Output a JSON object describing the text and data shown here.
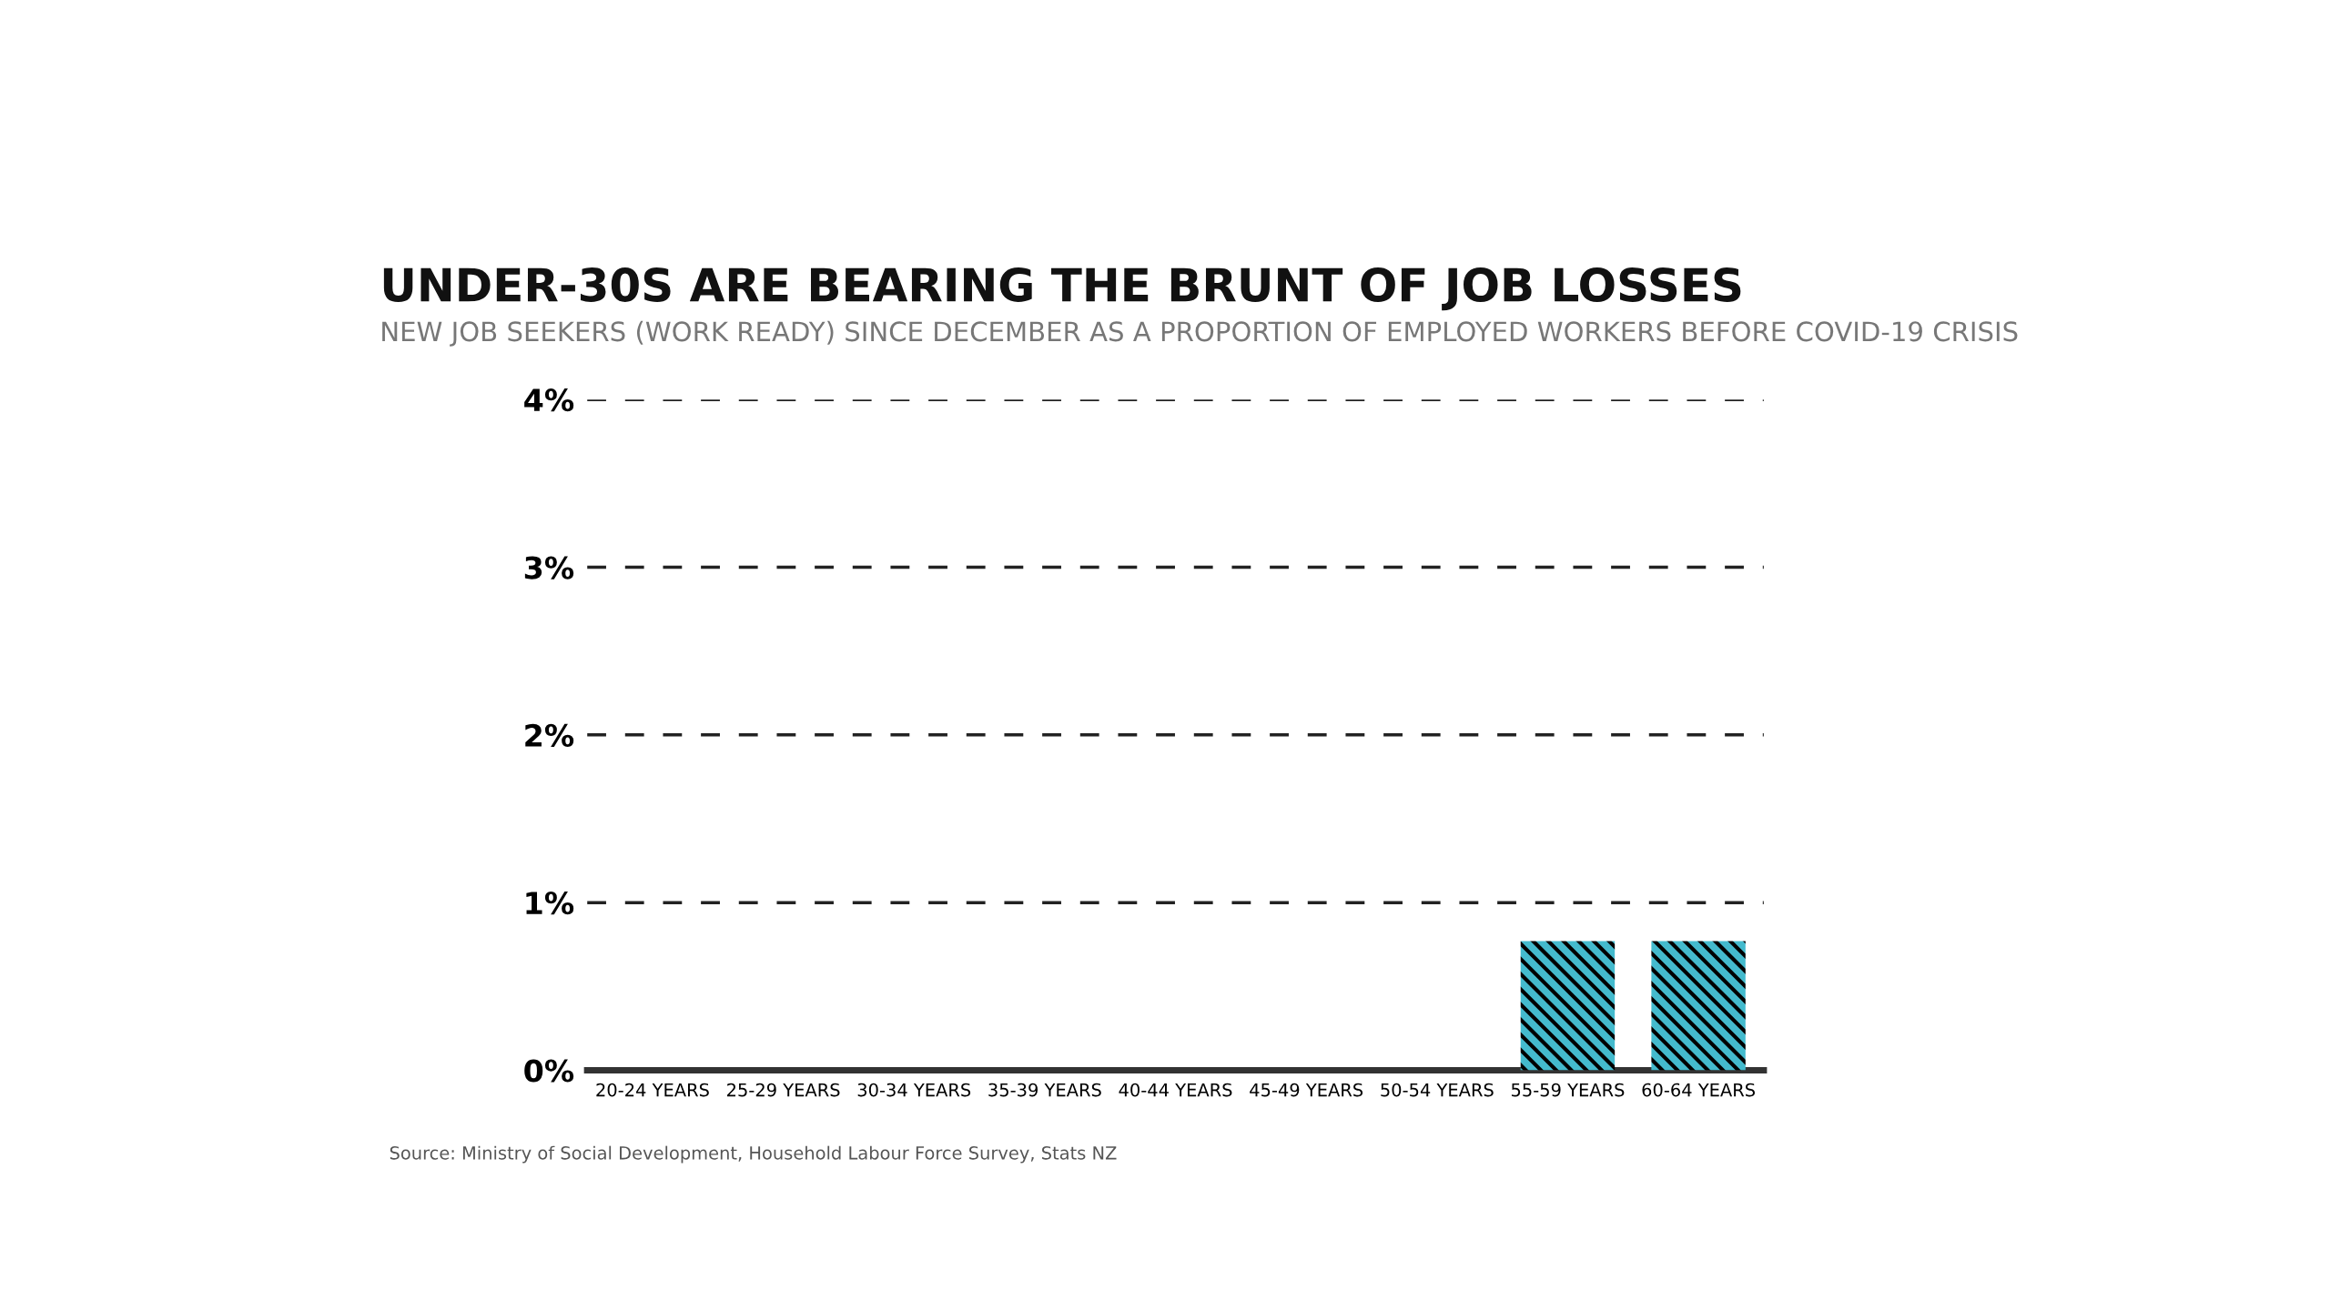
{
  "chart_data": {
    "type": "bar",
    "title": "UNDER-30S ARE BEARING THE BRUNT OF JOB LOSSES",
    "subtitle": "NEW JOB SEEKERS (WORK READY) SINCE DECEMBER AS A PROPORTION OF EMPLOYED WORKERS BEFORE COVID-19 CRISIS",
    "categories": [
      "20-24 YEARS",
      "25-29 YEARS",
      "30-34 YEARS",
      "35-39 YEARS",
      "40-44 YEARS",
      "45-49 YEARS",
      "50-54 YEARS",
      "55-59 YEARS",
      "60-64 YEARS"
    ],
    "values": [
      null,
      null,
      null,
      null,
      null,
      null,
      null,
      0.77,
      0.77
    ],
    "color": "#44bacd",
    "ylim": [
      0,
      4
    ],
    "yticks": [
      {
        "value": 0,
        "label": "0%"
      },
      {
        "value": 1,
        "label": "1%"
      },
      {
        "value": 2,
        "label": "2%"
      },
      {
        "value": 3,
        "label": "3%"
      },
      {
        "value": 4,
        "label": "4%"
      }
    ],
    "grid": "y",
    "line_style": "dashed",
    "annotations": [
      "Source: Ministry of Social Development, Household Labour Force Survey, Stats NZ"
    ]
  }
}
